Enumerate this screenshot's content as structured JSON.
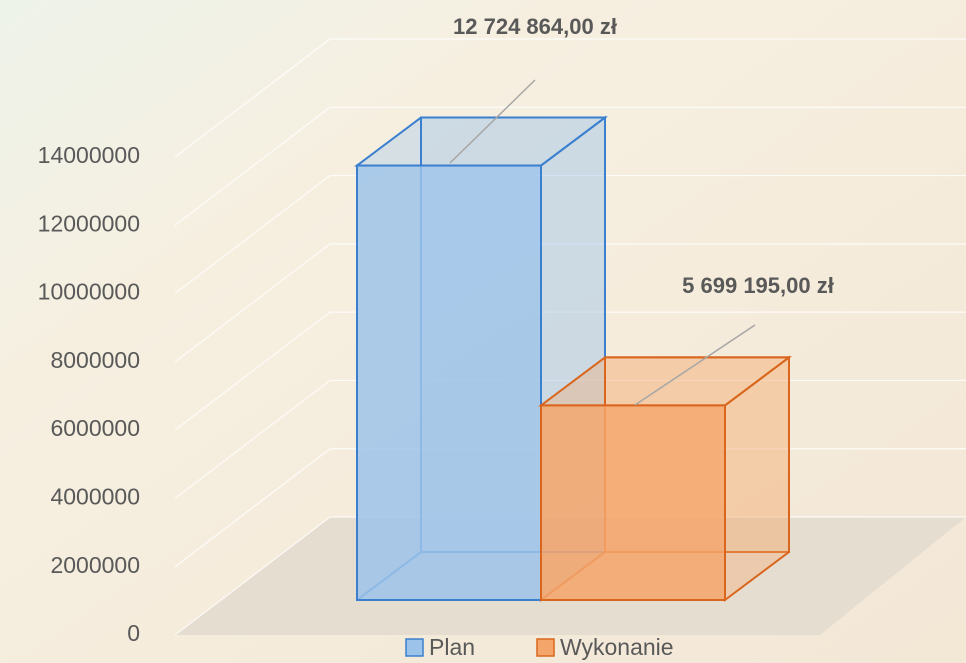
{
  "chart_data": {
    "type": "bar3d",
    "series": [
      {
        "name": "Plan",
        "color": "#9cc3ea",
        "values": [
          12724864
        ],
        "value_labels": [
          "12 724 864,00 zł"
        ]
      },
      {
        "name": "Wykonanie",
        "color": "#f4a56a",
        "values": [
          5699195
        ],
        "value_labels": [
          "5 699 195,00 zł"
        ]
      }
    ],
    "ylim": [
      0,
      14000000
    ],
    "yticks": [
      0,
      2000000,
      4000000,
      6000000,
      8000000,
      10000000,
      12000000,
      14000000
    ],
    "grid": true,
    "legend": "bottom"
  }
}
